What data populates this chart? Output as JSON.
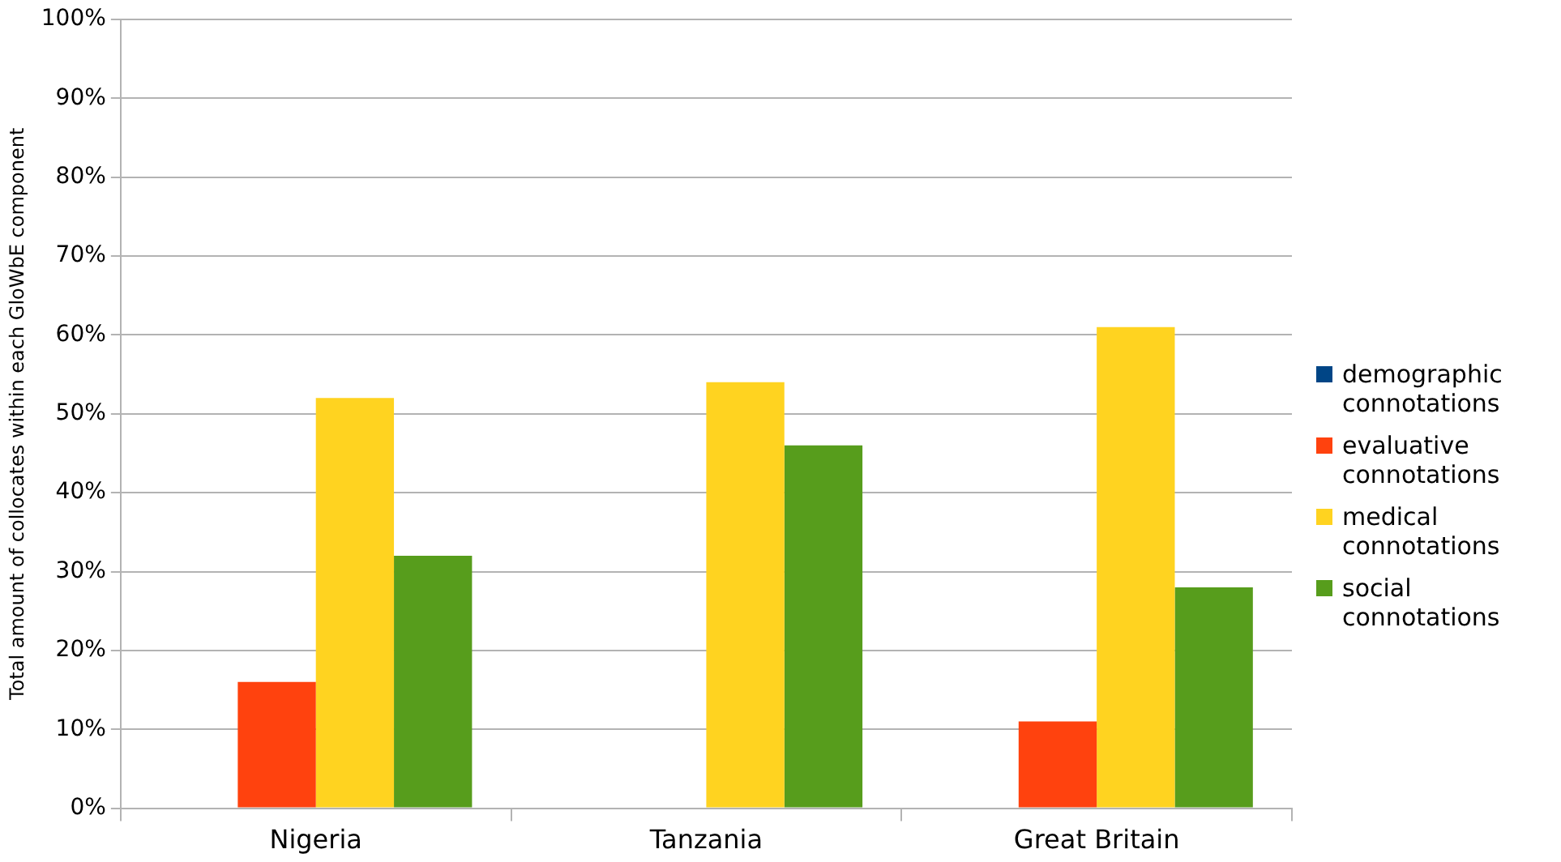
{
  "chart_data": {
    "type": "bar",
    "ylabel": "Total amount of collocates within each GloWbE component",
    "categories": [
      "Nigeria",
      "Tanzania",
      "Great Britain"
    ],
    "series": [
      {
        "name": "demographic connotations",
        "color": "#004586",
        "values": [
          0,
          0,
          0
        ]
      },
      {
        "name": "evaluative connotations",
        "color": "#ff420e",
        "values": [
          16,
          0,
          11
        ]
      },
      {
        "name": "medical connotations",
        "color": "#ffd320",
        "values": [
          52,
          54,
          61
        ]
      },
      {
        "name": "social connotations",
        "color": "#579d1c",
        "values": [
          32,
          46,
          28
        ]
      }
    ],
    "ylim": [
      0,
      100
    ],
    "yticks": [
      {
        "value": 0,
        "label": "0%"
      },
      {
        "value": 10,
        "label": "10%"
      },
      {
        "value": 20,
        "label": "20%"
      },
      {
        "value": 30,
        "label": "30%"
      },
      {
        "value": 40,
        "label": "40%"
      },
      {
        "value": 50,
        "label": "50%"
      },
      {
        "value": 60,
        "label": "60%"
      },
      {
        "value": 70,
        "label": "70%"
      },
      {
        "value": 80,
        "label": "80%"
      },
      {
        "value": 90,
        "label": "90%"
      },
      {
        "value": 100,
        "label": "100%"
      }
    ],
    "grid": "y",
    "legend": "right"
  }
}
